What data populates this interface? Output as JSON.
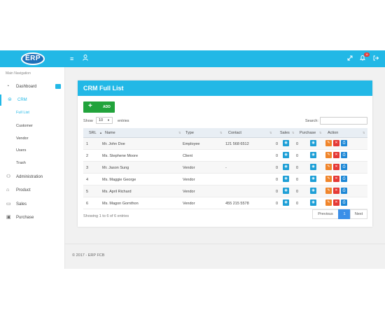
{
  "topbar": {
    "logo": "ERP",
    "notification_count": "11",
    "icons": [
      "menu-icon",
      "user-icon",
      "expand-icon",
      "bell-icon",
      "logout-icon"
    ]
  },
  "sidebar": {
    "heading": "Main Navigation",
    "items": [
      {
        "label": "Dashboard",
        "icon": "dashboard-icon"
      },
      {
        "label": "CRM",
        "icon": "crm-icon"
      },
      {
        "label": "Administration",
        "icon": "admin-icon"
      },
      {
        "label": "Product",
        "icon": "product-icon"
      },
      {
        "label": "Sales",
        "icon": "sales-icon"
      },
      {
        "label": "Purchase",
        "icon": "purchase-icon"
      }
    ],
    "crm_sub": [
      "Full List",
      "Customer",
      "Vendor",
      "Users",
      "Trash"
    ]
  },
  "card": {
    "title": "CRM Full List",
    "add_label": "ADD",
    "show_label": "Show",
    "entries_value": "10",
    "entries_label": "entries",
    "search_label": "Search:",
    "columns": [
      "SRL",
      "Name",
      "Type",
      "Contact",
      "Sales",
      "Purchase",
      "Action"
    ],
    "rows": [
      {
        "srl": "1",
        "name": "Mr. John Doe",
        "type": "Employee",
        "contact": "121 568 6512",
        "sales": "0",
        "purchase": "0"
      },
      {
        "srl": "2",
        "name": "Ms. Stephene Moore",
        "type": "Client",
        "contact": "",
        "sales": "0",
        "purchase": "0"
      },
      {
        "srl": "3",
        "name": "Mr. Jason Sung",
        "type": "Vendor",
        "contact": "-",
        "sales": "0",
        "purchase": "0"
      },
      {
        "srl": "4",
        "name": "Ms. Maggie George",
        "type": "Vendor",
        "contact": "",
        "sales": "0",
        "purchase": "0"
      },
      {
        "srl": "5",
        "name": "Ms. April Richard",
        "type": "Vendor",
        "contact": "",
        "sales": "0",
        "purchase": "0"
      },
      {
        "srl": "6",
        "name": "Ms. Magon Gornthon",
        "type": "Vendor",
        "contact": "455 215 5578",
        "sales": "0",
        "purchase": "0"
      }
    ],
    "info": "Showing 1 to 6 of 6 entries",
    "pager": {
      "prev": "Previous",
      "current": "1",
      "next": "Next"
    }
  },
  "footer": {
    "text": "© 2017 - ERP FCB"
  },
  "colors": {
    "primary": "#22b8e6",
    "add": "#21a33b",
    "edit": "#f0852b",
    "delete": "#e53935"
  }
}
